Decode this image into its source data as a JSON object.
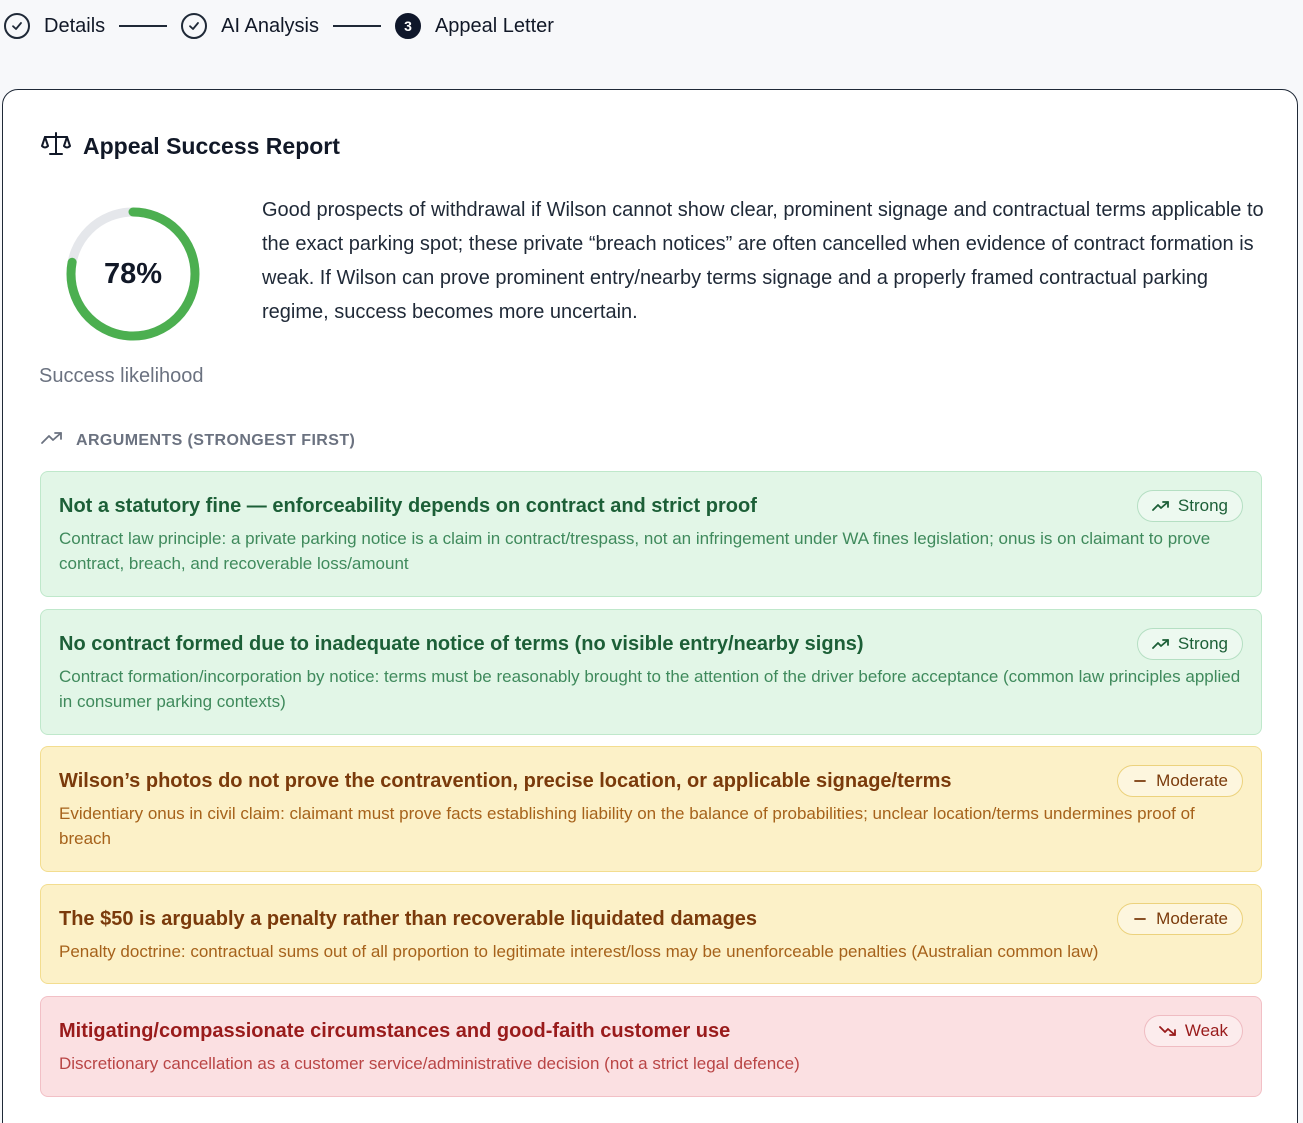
{
  "stepper": {
    "steps": [
      {
        "label": "Details",
        "state": "done"
      },
      {
        "label": "AI Analysis",
        "state": "done"
      },
      {
        "label": "Appeal Letter",
        "state": "active",
        "number": "3"
      }
    ]
  },
  "report": {
    "title": "Appeal Success Report",
    "icon": "scale-icon",
    "likelihood": {
      "value_text": "78%",
      "fraction": 0.78,
      "caption": "Success likelihood",
      "color": "#4caf50",
      "track_color": "#e5e7eb"
    },
    "summary": "Good prospects of withdrawal if Wilson cannot show clear, prominent signage and contractual terms applicable to the exact parking spot; these private “breach notices” are often cancelled when evidence of contract formation is weak. If Wilson can prove prominent entry/nearby terms signage and a properly framed contractual parking regime, success becomes more uncertain.",
    "arguments_heading": "ARGUMENTS (STRONGEST FIRST)",
    "arguments": [
      {
        "title": "Not a statutory fine — enforceability depends on contract and strict proof",
        "description": "Contract law principle: a private parking notice is a claim in contract/trespass, not an infringement under WA fines legislation; onus is on claimant to prove contract, breach, and recoverable loss/amount",
        "strength": "Strong",
        "icon": "trending-up-icon"
      },
      {
        "title": "No contract formed due to inadequate notice of terms (no visible entry/nearby signs)",
        "description": "Contract formation/incorporation by notice: terms must be reasonably brought to the attention of the driver before acceptance (common law principles applied in consumer parking contexts)",
        "strength": "Strong",
        "icon": "trending-up-icon"
      },
      {
        "title": "Wilson’s photos do not prove the contravention, precise location, or applicable signage/terms",
        "description": "Evidentiary onus in civil claim: claimant must prove facts establishing liability on the balance of probabilities; unclear location/terms undermines proof of breach",
        "strength": "Moderate",
        "icon": "minus-icon"
      },
      {
        "title": "The $50 is arguably a penalty rather than recoverable liquidated damages",
        "description": "Penalty doctrine: contractual sums out of all proportion to legitimate interest/loss may be unenforceable penalties (Australian common law)",
        "strength": "Moderate",
        "icon": "minus-icon"
      },
      {
        "title": "Mitigating/compassionate circumstances and good-faith customer use",
        "description": "Discretionary cancellation as a customer service/administrative decision (not a strict legal defence)",
        "strength": "Weak",
        "icon": "trending-down-icon"
      }
    ]
  }
}
